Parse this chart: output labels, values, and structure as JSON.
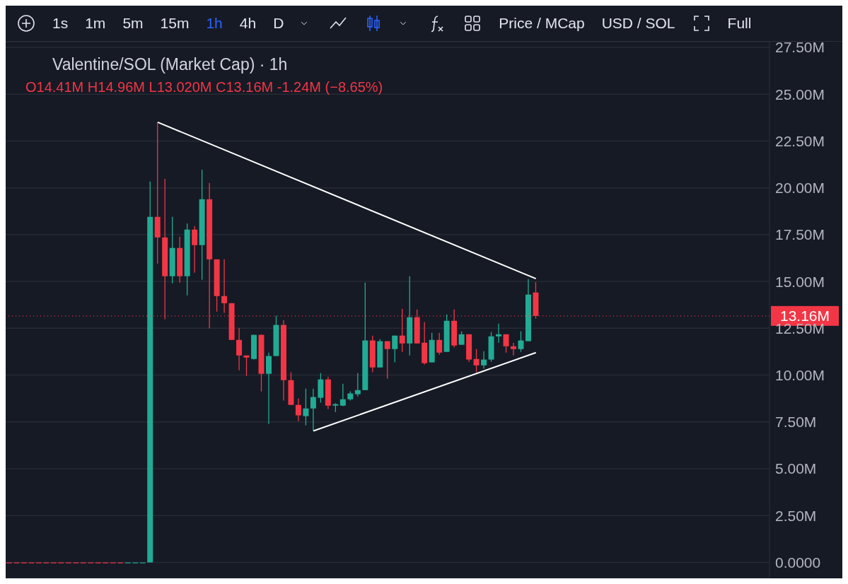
{
  "chart_data": {
    "type": "candlestick",
    "title": "Valentine/SOL (Market Cap) · 1h",
    "annotations": [
      "O14.41M H14.96M L13.020M C13.16M -1.24M (−8.65%)",
      "1s",
      "1m",
      "5m",
      "15m",
      "1h",
      "4h",
      "D",
      "Price / MCap",
      "USD / SOL",
      "Full"
    ],
    "categories": [
      null,
      null,
      null,
      null,
      null,
      null,
      null,
      null,
      null,
      null,
      null,
      null,
      null,
      null,
      null,
      null,
      null,
      null,
      null,
      null,
      null,
      null,
      null,
      null,
      null,
      null,
      null,
      null,
      null,
      null,
      null,
      null,
      null,
      null,
      null,
      null,
      null,
      null,
      null,
      null,
      null,
      null,
      null,
      null,
      null,
      null,
      null,
      null,
      null,
      null,
      null,
      null,
      null,
      null,
      null,
      null,
      null,
      null,
      null,
      null,
      null,
      null,
      null,
      null,
      null,
      null,
      null,
      null,
      null,
      null,
      null,
      null,
      null,
      null,
      null,
      null,
      null,
      null,
      null,
      null,
      null,
      null,
      null,
      null,
      null,
      null,
      null,
      null,
      null,
      null,
      null,
      null,
      null,
      null,
      null,
      null,
      null,
      null,
      null,
      null,
      null,
      null,
      null
    ],
    "series": [
      {
        "type": "line",
        "color": "#ffffff",
        "values": [
          null,
          null,
          null,
          null,
          null,
          null,
          null,
          null,
          null,
          null,
          null,
          null,
          null,
          null,
          null,
          null,
          null,
          null,
          null,
          null,
          23.5,
          null,
          null,
          null,
          null,
          null,
          null,
          null,
          null,
          null,
          null,
          null,
          null,
          null,
          null,
          null,
          null,
          null,
          null,
          null,
          null,
          null,
          null,
          null,
          null,
          null,
          null,
          null,
          null,
          null,
          null,
          null,
          null,
          null,
          null,
          null,
          null,
          null,
          null,
          null,
          null,
          null,
          null,
          null,
          null,
          null,
          null,
          null,
          null,
          null,
          null,
          15.15,
          null,
          null,
          null,
          null,
          null,
          null,
          null,
          null,
          null,
          null,
          null,
          null,
          null,
          null,
          null,
          null,
          null,
          null,
          null,
          null,
          null,
          null,
          null,
          null,
          null,
          null,
          null,
          null,
          null,
          null,
          null
        ]
      },
      {
        "type": "line",
        "color": "#ffffff",
        "values": [
          null,
          null,
          null,
          null,
          null,
          null,
          null,
          null,
          null,
          null,
          null,
          null,
          null,
          null,
          null,
          null,
          null,
          null,
          null,
          null,
          null,
          null,
          null,
          null,
          null,
          null,
          null,
          null,
          null,
          null,
          null,
          null,
          null,
          null,
          null,
          null,
          null,
          null,
          null,
          null,
          null,
          7.02,
          null,
          null,
          null,
          null,
          null,
          null,
          null,
          null,
          null,
          null,
          null,
          null,
          null,
          null,
          null,
          null,
          null,
          null,
          null,
          null,
          null,
          null,
          null,
          null,
          null,
          null,
          null,
          null,
          null,
          11.2,
          null,
          null,
          null,
          null,
          null,
          null,
          null,
          null,
          null,
          null,
          null,
          null,
          null,
          null,
          null,
          null,
          null,
          null,
          null,
          null,
          null,
          null,
          null,
          null,
          null,
          null,
          null,
          null,
          null,
          null,
          null
        ]
      }
    ],
    "ohlc": [
      [
        0,
        0,
        0,
        0
      ],
      [
        0,
        0,
        0,
        0
      ],
      [
        0,
        0,
        0,
        0
      ],
      [
        0,
        0,
        0,
        0
      ],
      [
        0,
        0,
        0,
        0
      ],
      [
        0,
        0,
        0,
        0
      ],
      [
        0,
        0,
        0,
        0
      ],
      [
        0,
        0,
        0,
        0
      ],
      [
        0,
        0,
        0,
        0
      ],
      [
        0,
        0,
        0,
        0
      ],
      [
        0,
        0,
        0,
        0
      ],
      [
        0,
        0,
        0,
        0
      ],
      [
        0,
        0,
        0,
        0
      ],
      [
        0,
        0,
        0,
        0
      ],
      [
        0,
        0,
        0,
        0
      ],
      [
        0,
        0,
        0,
        0
      ],
      [
        0,
        0,
        0,
        0
      ],
      [
        0,
        0,
        0,
        0
      ],
      [
        0,
        0,
        0,
        0
      ],
      [
        0,
        20.34,
        0,
        18.45
      ],
      [
        18.45,
        23.5,
        15.96,
        17.35
      ],
      [
        17.35,
        20.48,
        12.98,
        15.28
      ],
      [
        15.28,
        18.45,
        14.9,
        16.79
      ],
      [
        16.79,
        17.39,
        14.94,
        15.28
      ],
      [
        15.28,
        18.1,
        14.26,
        17.77
      ],
      [
        17.77,
        17.96,
        15.47,
        16.94
      ],
      [
        16.94,
        20.97,
        15.09,
        19.39
      ],
      [
        19.39,
        20.26,
        12.49,
        16.18
      ],
      [
        16.18,
        16.18,
        13.39,
        14.22
      ],
      [
        14.22,
        16.18,
        13.32,
        13.84
      ],
      [
        13.84,
        13.84,
        11.88,
        11.88
      ],
      [
        11.88,
        12.52,
        10.26,
        11.05
      ],
      [
        11.05,
        11.05,
        9.96,
        10.94
      ],
      [
        10.86,
        12.15,
        10.83,
        12.15
      ],
      [
        12.15,
        12.15,
        9.13,
        10.07
      ],
      [
        10.07,
        11.2,
        7.39,
        11.02
      ],
      [
        11.02,
        13.17,
        11.02,
        12.68
      ],
      [
        12.68,
        12.94,
        8.64,
        9.73
      ],
      [
        9.73,
        10.15,
        8.41,
        8.41
      ],
      [
        8.41,
        8.75,
        7.54,
        7.85
      ],
      [
        7.81,
        9.28,
        7.32,
        8.22
      ],
      [
        8.22,
        9.28,
        7.02,
        8.83
      ],
      [
        8.79,
        10.11,
        8.53,
        9.77
      ],
      [
        9.77,
        9.92,
        8.19,
        8.37
      ],
      [
        8.37,
        8.5,
        8.03,
        8.45
      ],
      [
        8.37,
        9.54,
        8.34,
        8.71
      ],
      [
        8.71,
        9.13,
        8.64,
        9.02
      ],
      [
        8.98,
        10.11,
        8.86,
        9.2
      ],
      [
        9.2,
        14.94,
        9.2,
        11.85
      ],
      [
        11.85,
        12.11,
        10.15,
        10.41
      ],
      [
        10.41,
        11.92,
        10.41,
        11.81
      ],
      [
        11.81,
        11.81,
        9.81,
        11.39
      ],
      [
        11.39,
        12.11,
        10.68,
        12.11
      ],
      [
        12.11,
        13.54,
        11.24,
        11.69
      ],
      [
        11.69,
        15.28,
        11.05,
        13.09
      ],
      [
        13.09,
        13.5,
        11.69,
        11.69
      ],
      [
        11.73,
        12.83,
        10.56,
        10.64
      ],
      [
        10.68,
        12.26,
        10.68,
        11.88
      ],
      [
        11.88,
        12.26,
        11.09,
        11.2
      ],
      [
        11.24,
        13.24,
        11.24,
        12.9
      ],
      [
        12.9,
        13.5,
        11.47,
        11.58
      ],
      [
        11.62,
        12.34,
        11.62,
        12.18
      ],
      [
        12.18,
        12.18,
        10.71,
        10.83
      ],
      [
        10.86,
        11.39,
        10.15,
        10.52
      ],
      [
        10.52,
        11.28,
        10.34,
        10.83
      ],
      [
        10.83,
        12.3,
        10.71,
        12.07
      ],
      [
        12.07,
        12.75,
        11.73,
        12.18
      ],
      [
        12.18,
        12.18,
        11.2,
        11.54
      ],
      [
        11.54,
        11.73,
        11.05,
        11.39
      ],
      [
        11.39,
        12.34,
        11.24,
        11.85
      ],
      [
        11.81,
        15.13,
        11.81,
        14.3
      ],
      [
        14.41,
        14.96,
        13.02,
        13.16
      ],
      null,
      null,
      null,
      null,
      null,
      null,
      null,
      null,
      null,
      null,
      null,
      null,
      null,
      null,
      null,
      null,
      null,
      null,
      null,
      null,
      null,
      null,
      null,
      null,
      null,
      null,
      null,
      null,
      null,
      null,
      null
    ],
    "colors": [
      "#f23645",
      "#f23645",
      "#f23645",
      "#f23645",
      "#f23645",
      "#f23645",
      "#f23645",
      "#f23645",
      "#f23645",
      "#f23645",
      "#f23645",
      "#f23645",
      "#f23645",
      "#f23645",
      "#f23645",
      "#f23645",
      "#22ab94",
      "#22ab94",
      "#22ab94",
      "#22ab94",
      "#f23645",
      "#f23645",
      "#22ab94",
      "#f23645",
      "#22ab94",
      "#f23645",
      "#22ab94",
      "#f23645",
      "#f23645",
      "#f23645",
      "#f23645",
      "#f23645",
      "#f23645",
      "#22ab94",
      "#f23645",
      "#22ab94",
      "#22ab94",
      "#f23645",
      "#f23645",
      "#f23645",
      "#22ab94",
      "#22ab94",
      "#22ab94",
      "#f23645",
      "#22ab94",
      "#22ab94",
      "#22ab94",
      "#22ab94",
      "#22ab94",
      "#f23645",
      "#22ab94",
      "#f23645",
      "#22ab94",
      "#f23645",
      "#22ab94",
      "#f23645",
      "#f23645",
      "#22ab94",
      "#f23645",
      "#22ab94",
      "#f23645",
      "#22ab94",
      "#f23645",
      "#f23645",
      "#22ab94",
      "#22ab94",
      "#22ab94",
      "#f23645",
      "#f23645",
      "#22ab94",
      "#22ab94",
      "#f23645",
      null,
      null,
      null,
      null,
      null,
      null,
      null,
      null,
      null,
      null,
      null,
      null,
      null,
      null,
      null,
      null,
      null,
      null,
      null,
      null,
      null,
      null,
      null,
      null,
      null,
      null,
      null,
      null,
      null,
      null,
      null
    ],
    "ref_lines": [
      {
        "axis": "y",
        "value": 13.16,
        "label": "13.16M",
        "color": "#f23645",
        "line_style": "dotted"
      }
    ],
    "ylim": [
      -0.85,
      27.8
    ],
    "yticks": [
      {
        "value": 0,
        "label": "0.0000"
      },
      {
        "value": 2.5,
        "label": "2.50M"
      },
      {
        "value": 5,
        "label": "5.00M"
      },
      {
        "value": 7.5,
        "label": "7.50M"
      },
      {
        "value": 10,
        "label": "10.00M"
      },
      {
        "value": 12.5,
        "label": "12.50M"
      },
      {
        "value": 15,
        "label": "15.00M"
      },
      {
        "value": 17.5,
        "label": "17.50M"
      },
      {
        "value": 20,
        "label": "20.00M"
      },
      {
        "value": 22.5,
        "label": "22.50M"
      },
      {
        "value": 25,
        "label": "25.00M"
      },
      {
        "value": 27.5,
        "label": "27.50M"
      }
    ],
    "grid": "y",
    "tick_labels": "y",
    "marker": "none"
  }
}
